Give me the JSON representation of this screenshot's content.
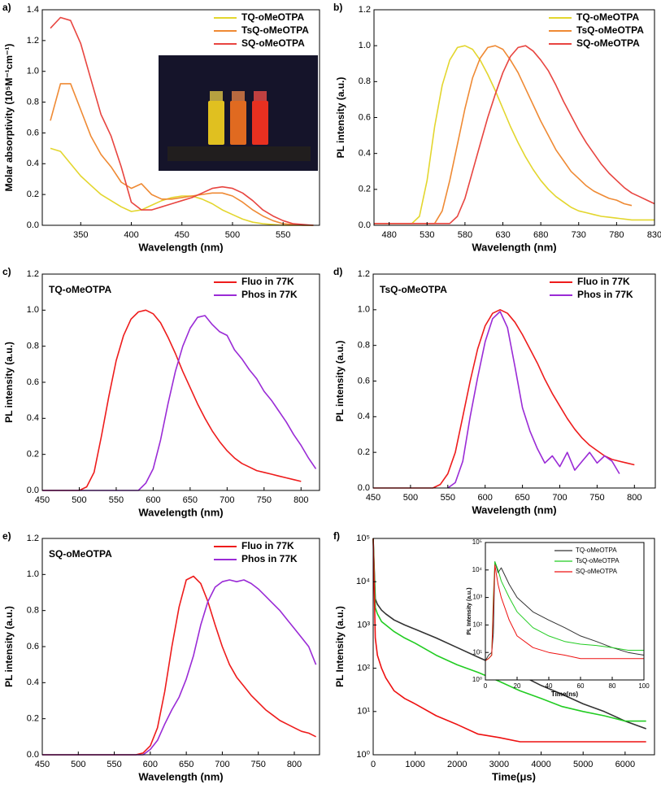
{
  "chart_data": [
    {
      "type": "line",
      "panel_label": "a)",
      "xlabel": "Wavelength (nm)",
      "ylabel": "Molar absorptivity (10⁵M⁻¹cm⁻¹)",
      "x": [
        320,
        330,
        340,
        350,
        360,
        370,
        380,
        390,
        400,
        410,
        420,
        430,
        440,
        450,
        460,
        470,
        480,
        490,
        500,
        510,
        520,
        530,
        540,
        550,
        560,
        570,
        580
      ],
      "series": [
        {
          "name": "TQ-oMeOTPA",
          "color": "#e3d62e",
          "values": [
            0.5,
            0.48,
            0.4,
            0.32,
            0.26,
            0.2,
            0.16,
            0.12,
            0.09,
            0.1,
            0.13,
            0.16,
            0.18,
            0.19,
            0.19,
            0.17,
            0.14,
            0.1,
            0.07,
            0.04,
            0.02,
            0.01,
            0.005,
            0,
            0,
            0,
            0
          ]
        },
        {
          "name": "TsQ-oMeOTPA",
          "color": "#ef8a34",
          "values": [
            0.68,
            0.92,
            0.92,
            0.75,
            0.58,
            0.46,
            0.38,
            0.28,
            0.24,
            0.27,
            0.2,
            0.17,
            0.17,
            0.18,
            0.19,
            0.2,
            0.21,
            0.21,
            0.19,
            0.15,
            0.1,
            0.06,
            0.03,
            0.01,
            0.005,
            0,
            0
          ]
        },
        {
          "name": "SQ-oMeOTPA",
          "color": "#e84540",
          "values": [
            1.28,
            1.35,
            1.33,
            1.18,
            0.95,
            0.72,
            0.58,
            0.38,
            0.15,
            0.1,
            0.1,
            0.12,
            0.14,
            0.16,
            0.18,
            0.21,
            0.24,
            0.25,
            0.24,
            0.21,
            0.16,
            0.1,
            0.06,
            0.03,
            0.01,
            0.005,
            0
          ]
        }
      ],
      "xlim": [
        312,
        586
      ],
      "xticks": [
        350,
        400,
        450,
        500,
        550
      ],
      "ylim": [
        0,
        1.4
      ],
      "yticks": [
        {
          "value": 0,
          "label": "0.0"
        },
        0.2,
        0.4,
        0.6,
        0.8,
        {
          "value": 1,
          "label": "1.0"
        },
        1.2,
        1.4
      ],
      "legend": "upper right"
    },
    {
      "type": "line",
      "panel_label": "b)",
      "xlabel": "Wavelength (nm)",
      "ylabel": "PL intensity (a.u.)",
      "x": [
        460,
        470,
        480,
        490,
        500,
        510,
        520,
        530,
        540,
        550,
        560,
        570,
        580,
        590,
        600,
        610,
        620,
        630,
        640,
        650,
        660,
        670,
        680,
        690,
        700,
        710,
        720,
        730,
        740,
        750,
        760,
        770,
        780,
        790,
        800,
        810,
        820,
        830
      ],
      "series": [
        {
          "name": "TQ-oMeOTPA",
          "color": "#e3d62e",
          "values": [
            0.01,
            0.01,
            0.01,
            0.01,
            0.01,
            0.01,
            0.05,
            0.25,
            0.55,
            0.78,
            0.92,
            0.99,
            1.0,
            0.98,
            0.92,
            0.84,
            0.75,
            0.65,
            0.55,
            0.46,
            0.38,
            0.31,
            0.25,
            0.2,
            0.16,
            0.13,
            0.1,
            0.08,
            0.07,
            0.06,
            0.05,
            0.045,
            0.04,
            0.035,
            0.03,
            0.03,
            0.03,
            0.03
          ]
        },
        {
          "name": "TsQ-oMeOTPA",
          "color": "#ef8a34",
          "values": [
            0.01,
            0.01,
            0.01,
            0.01,
            0.01,
            0.01,
            0.01,
            0.01,
            0.01,
            0.08,
            0.25,
            0.45,
            0.65,
            0.82,
            0.93,
            0.99,
            1.0,
            0.98,
            0.92,
            0.85,
            0.76,
            0.67,
            0.58,
            0.5,
            0.42,
            0.36,
            0.3,
            0.26,
            0.22,
            0.19,
            0.17,
            0.15,
            0.14,
            0.12,
            0.11,
            null,
            null,
            null
          ]
        },
        {
          "name": "SQ-oMeOTPA",
          "color": "#e84540",
          "values": [
            0.01,
            0.01,
            0.01,
            0.01,
            0.01,
            0.01,
            0.01,
            0.01,
            0.01,
            0.01,
            0.01,
            0.05,
            0.15,
            0.3,
            0.45,
            0.6,
            0.73,
            0.85,
            0.94,
            0.99,
            1.0,
            0.97,
            0.92,
            0.86,
            0.78,
            0.69,
            0.61,
            0.53,
            0.46,
            0.4,
            0.34,
            0.29,
            0.25,
            0.21,
            0.18,
            0.16,
            0.14,
            0.12
          ]
        }
      ],
      "xlim": [
        460,
        830
      ],
      "xticks": [
        480,
        530,
        580,
        630,
        680,
        730,
        780,
        830
      ],
      "ylim": [
        0,
        1.2
      ],
      "yticks": [
        {
          "value": 0,
          "label": "0.0"
        },
        0.2,
        0.4,
        0.6,
        0.8,
        {
          "value": 1,
          "label": "1.0"
        },
        1.2
      ],
      "legend": "upper right"
    },
    {
      "type": "line",
      "panel_label": "c)",
      "annotation": "TQ-oMeOTPA",
      "xlabel": "Wavelength (nm)",
      "ylabel": "PL intensity (a.u.)",
      "x": [
        450,
        460,
        470,
        480,
        490,
        500,
        510,
        520,
        530,
        540,
        550,
        560,
        570,
        580,
        590,
        600,
        610,
        620,
        630,
        640,
        650,
        660,
        670,
        680,
        690,
        700,
        710,
        720,
        730,
        740,
        750,
        760,
        770,
        780,
        790,
        800,
        810,
        820
      ],
      "series": [
        {
          "name": "Fluo in 77K",
          "color": "#ee1c1c",
          "values": [
            0,
            0,
            0,
            0,
            0,
            0,
            0.02,
            0.1,
            0.3,
            0.52,
            0.72,
            0.86,
            0.95,
            0.99,
            1.0,
            0.98,
            0.93,
            0.85,
            0.76,
            0.66,
            0.57,
            0.48,
            0.4,
            0.33,
            0.27,
            0.22,
            0.18,
            0.15,
            0.13,
            0.11,
            0.1,
            0.09,
            0.08,
            0.07,
            0.06,
            0.05,
            null,
            null
          ]
        },
        {
          "name": "Phos in 77K",
          "color": "#9a2bd6",
          "values": [
            0,
            0,
            0,
            0,
            0,
            0,
            0,
            0,
            0,
            0,
            0,
            0,
            0,
            0,
            0.04,
            0.12,
            0.28,
            0.48,
            0.66,
            0.8,
            0.9,
            0.96,
            0.97,
            0.92,
            0.88,
            0.86,
            0.78,
            0.73,
            0.67,
            0.62,
            0.55,
            0.5,
            0.44,
            0.38,
            0.31,
            0.25,
            0.18,
            0.12
          ]
        }
      ],
      "xlim": [
        450,
        825
      ],
      "xticks": [
        450,
        500,
        550,
        600,
        650,
        700,
        750,
        800
      ],
      "ylim": [
        0,
        1.2
      ],
      "yticks": [
        {
          "value": 0,
          "label": "0.0"
        },
        0.2,
        0.4,
        0.6,
        0.8,
        {
          "value": 1,
          "label": "1.0"
        },
        1.2
      ],
      "legend": "upper right"
    },
    {
      "type": "line",
      "panel_label": "d)",
      "annotation": "TsQ-oMeOTPA",
      "xlabel": "Wavelength (nm)",
      "ylabel": "PL intensity (a.u.)",
      "x": [
        450,
        460,
        470,
        480,
        490,
        500,
        510,
        520,
        530,
        540,
        550,
        560,
        570,
        580,
        590,
        600,
        610,
        620,
        630,
        640,
        650,
        660,
        670,
        680,
        690,
        700,
        710,
        720,
        730,
        740,
        750,
        760,
        770,
        780,
        790,
        800
      ],
      "series": [
        {
          "name": "Fluo in 77K",
          "color": "#ee1c1c",
          "values": [
            0,
            0,
            0,
            0,
            0,
            0,
            0,
            0,
            0,
            0.02,
            0.08,
            0.2,
            0.4,
            0.6,
            0.78,
            0.91,
            0.98,
            1.0,
            0.98,
            0.93,
            0.86,
            0.78,
            0.7,
            0.61,
            0.53,
            0.46,
            0.39,
            0.33,
            0.28,
            0.24,
            0.21,
            0.18,
            0.16,
            0.15,
            0.14,
            0.13
          ]
        },
        {
          "name": "Phos in 77K",
          "color": "#9a2bd6",
          "values": [
            null,
            null,
            null,
            null,
            null,
            null,
            null,
            null,
            null,
            null,
            0.0,
            0.03,
            0.15,
            0.4,
            0.62,
            0.82,
            0.95,
            0.99,
            0.9,
            0.68,
            0.45,
            0.32,
            0.22,
            0.14,
            0.18,
            0.12,
            0.2,
            0.1,
            0.15,
            0.2,
            0.14,
            0.18,
            0.15,
            0.08,
            null,
            null
          ]
        }
      ],
      "xlim": [
        450,
        828
      ],
      "xticks": [
        450,
        500,
        550,
        600,
        650,
        700,
        750,
        800
      ],
      "ylim": [
        0,
        1.2
      ],
      "yticks": [
        {
          "value": 0,
          "label": "0.0"
        },
        0.2,
        0.4,
        0.6,
        0.8,
        {
          "value": 1,
          "label": "1.0"
        },
        1.2
      ],
      "legend": "upper right"
    },
    {
      "type": "line",
      "panel_label": "e)",
      "annotation": "SQ-oMeOTPA",
      "xlabel": "Wavelength (nm)",
      "ylabel": "PL intensity (a.u.)",
      "x": [
        450,
        460,
        470,
        480,
        490,
        500,
        510,
        520,
        530,
        540,
        550,
        560,
        570,
        580,
        590,
        600,
        610,
        620,
        630,
        640,
        650,
        660,
        670,
        680,
        690,
        700,
        710,
        720,
        730,
        740,
        750,
        760,
        770,
        780,
        790,
        800,
        810,
        820,
        830
      ],
      "series": [
        {
          "name": "Fluo in 77K",
          "color": "#ee1c1c",
          "values": [
            0,
            0,
            0,
            0,
            0,
            0,
            0,
            0,
            0,
            0,
            0,
            0,
            0,
            0,
            0.01,
            0.05,
            0.15,
            0.35,
            0.6,
            0.82,
            0.97,
            0.99,
            0.95,
            0.85,
            0.72,
            0.6,
            0.5,
            0.43,
            0.38,
            0.33,
            0.29,
            0.25,
            0.22,
            0.19,
            0.17,
            0.15,
            0.13,
            0.12,
            0.1
          ]
        },
        {
          "name": "Phos in 77K",
          "color": "#9a2bd6",
          "values": [
            0,
            0,
            0,
            0,
            0,
            0,
            0,
            0,
            0,
            0,
            0,
            0,
            0,
            0,
            0,
            0.03,
            0.08,
            0.17,
            0.25,
            0.32,
            0.42,
            0.55,
            0.72,
            0.85,
            0.93,
            0.96,
            0.97,
            0.96,
            0.97,
            0.95,
            0.92,
            0.88,
            0.84,
            0.8,
            0.75,
            0.7,
            0.65,
            0.6,
            0.5
          ]
        }
      ],
      "xlim": [
        450,
        835
      ],
      "xticks": [
        450,
        500,
        550,
        600,
        650,
        700,
        750,
        800
      ],
      "ylim": [
        0,
        1.2
      ],
      "yticks": [
        {
          "value": 0,
          "label": "0.0"
        },
        0.2,
        0.4,
        0.6,
        0.8,
        {
          "value": 1,
          "label": "1.0"
        },
        1.2
      ],
      "legend": "upper right"
    },
    {
      "type": "line",
      "panel_label": "f)",
      "xlabel": "Time(μs)",
      "ylabel": "PL Intensity (a.u.)",
      "yscale": "log",
      "x": [
        0,
        50,
        100,
        200,
        300,
        500,
        750,
        1000,
        1500,
        2000,
        2500,
        3000,
        3500,
        4000,
        4500,
        5000,
        5500,
        6000,
        6500
      ],
      "series": [
        {
          "name": "TQ-oMeOTPA",
          "color": "#333333",
          "values": [
            100000,
            4000,
            3000,
            2200,
            1800,
            1300,
            1000,
            800,
            500,
            300,
            180,
            110,
            70,
            40,
            25,
            15,
            10,
            6,
            4
          ]
        },
        {
          "name": "TsQ-oMeOTPA",
          "color": "#22cc22",
          "values": [
            100000,
            2500,
            1800,
            1200,
            1000,
            700,
            500,
            380,
            200,
            120,
            80,
            50,
            30,
            20,
            13,
            10,
            8,
            6,
            6
          ]
        },
        {
          "name": "SQ-oMeOTPA",
          "color": "#ee1111",
          "values": [
            100000,
            500,
            200,
            100,
            60,
            30,
            20,
            15,
            8,
            5,
            3,
            2.5,
            2,
            2,
            2,
            2,
            2,
            2,
            2
          ]
        }
      ],
      "xlim": [
        0,
        6700
      ],
      "xticks": [
        0,
        1000,
        2000,
        3000,
        4000,
        5000,
        6000
      ],
      "ylim": [
        1,
        100000
      ],
      "yticks": [
        {
          "value": 1,
          "label": "10⁰"
        },
        {
          "value": 10,
          "label": "10¹"
        },
        {
          "value": 100,
          "label": "10²"
        },
        {
          "value": 1000,
          "label": "10³"
        },
        {
          "value": 10000,
          "label": "10⁴"
        },
        {
          "value": 100000,
          "label": "10⁵"
        }
      ],
      "inset": {
        "type": "line",
        "xlabel": "Time(ns)",
        "ylabel": "PL Intensity (a.u.)",
        "yscale": "log",
        "x": [
          0,
          2,
          4,
          5,
          6,
          8,
          10,
          15,
          20,
          30,
          40,
          50,
          60,
          70,
          80,
          90,
          100
        ],
        "series": [
          {
            "name": "TQ-oMeOTPA",
            "color": "#333333",
            "values": [
              5,
              8,
              10,
              50,
              20000,
              8000,
              12000,
              3000,
              1000,
              300,
              150,
              80,
              40,
              25,
              15,
              10,
              8
            ]
          },
          {
            "name": "TsQ-oMeOTPA",
            "color": "#22cc22",
            "values": [
              5,
              6,
              8,
              1000,
              20000,
              10000,
              4000,
              1000,
              300,
              80,
              40,
              25,
              20,
              18,
              15,
              12,
              12
            ]
          },
          {
            "name": "SQ-oMeOTPA",
            "color": "#ee1111",
            "values": [
              5,
              6,
              8,
              500,
              15000,
              3000,
              1000,
              150,
              40,
              15,
              10,
              8,
              6,
              6,
              6,
              6,
              6
            ]
          }
        ],
        "xlim": [
          0,
          100
        ],
        "xticks": [
          0,
          20,
          40,
          60,
          80,
          100
        ],
        "ylim": [
          1,
          100000
        ],
        "yticks": [
          {
            "value": 1,
            "label": "10⁰"
          },
          {
            "value": 10,
            "label": "10¹"
          },
          {
            "value": 100,
            "label": "10²"
          },
          {
            "value": 1000,
            "label": "10³"
          },
          {
            "value": 10000,
            "label": "10⁴"
          },
          {
            "value": 100000,
            "label": "10⁵"
          }
        ],
        "legend": "upper right"
      }
    }
  ]
}
